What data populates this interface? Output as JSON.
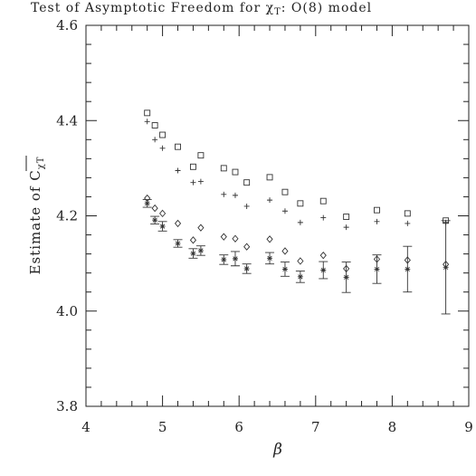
{
  "chart_data": {
    "type": "scatter",
    "title": "Test of Asymptotic Freedom for χ",
    "title_sub": "T",
    "title_tail": ": O(8) model",
    "xlabel": "β",
    "ylabel_main": "Estimate of C",
    "ylabel_sub": "χT",
    "xlim": [
      4,
      9
    ],
    "ylim": [
      3.8,
      4.6
    ],
    "xticks": [
      4,
      5,
      6,
      7,
      8,
      9
    ],
    "yticks": [
      "3.8",
      "4.0",
      "4.2",
      "4.4",
      "4.6"
    ],
    "grid": false,
    "series": [
      {
        "marker": "square",
        "x": [
          4.8,
          4.9,
          5.0,
          5.2,
          5.4,
          5.5,
          5.8,
          5.95,
          6.1,
          6.4,
          6.6,
          6.8,
          7.1,
          7.4,
          7.8,
          8.2,
          8.7
        ],
        "y": [
          4.416,
          4.39,
          4.37,
          4.345,
          4.303,
          4.327,
          4.3,
          4.292,
          4.27,
          4.281,
          4.25,
          4.226,
          4.231,
          4.198,
          4.212,
          4.205,
          4.19
        ]
      },
      {
        "marker": "plus",
        "x": [
          4.8,
          4.9,
          5.0,
          5.2,
          5.4,
          5.5,
          5.8,
          5.95,
          6.1,
          6.4,
          6.6,
          6.8,
          7.1,
          7.4,
          7.8,
          8.2,
          8.7
        ],
        "y": [
          4.398,
          4.36,
          4.342,
          4.295,
          4.27,
          4.272,
          4.245,
          4.243,
          4.22,
          4.233,
          4.21,
          4.186,
          4.196,
          4.176,
          4.188,
          4.184,
          4.186
        ]
      },
      {
        "marker": "diamond",
        "x": [
          4.8,
          4.9,
          5.0,
          5.2,
          5.4,
          5.5,
          5.8,
          5.95,
          6.1,
          6.4,
          6.6,
          6.8,
          7.1,
          7.4,
          7.8,
          8.2,
          8.7
        ],
        "y": [
          4.237,
          4.216,
          4.205,
          4.184,
          4.149,
          4.175,
          4.156,
          4.152,
          4.135,
          4.151,
          4.126,
          4.105,
          4.117,
          4.089,
          4.109,
          4.107,
          4.098
        ]
      },
      {
        "marker": "star",
        "x": [
          4.8,
          4.9,
          5.0,
          5.2,
          5.4,
          5.5,
          5.8,
          5.95,
          6.1,
          6.4,
          6.6,
          6.8,
          7.1,
          7.4,
          7.8,
          8.2,
          8.7
        ],
        "y": [
          4.226,
          4.191,
          4.178,
          4.142,
          4.121,
          4.127,
          4.108,
          4.11,
          4.089,
          4.111,
          4.088,
          4.072,
          4.086,
          4.071,
          4.088,
          4.088,
          4.092
        ],
        "err": [
          0.008,
          0.008,
          0.01,
          0.008,
          0.01,
          0.01,
          0.01,
          0.015,
          0.01,
          0.012,
          0.015,
          0.012,
          0.018,
          0.032,
          0.03,
          0.048,
          0.098
        ]
      }
    ]
  }
}
